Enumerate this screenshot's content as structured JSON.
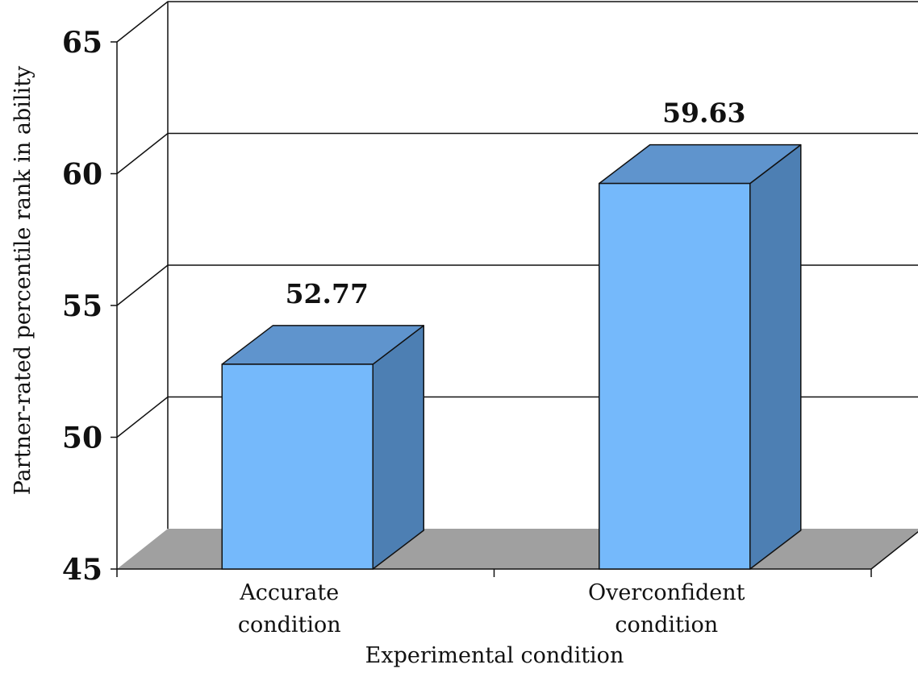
{
  "chart_data": {
    "type": "bar",
    "title": "",
    "xlabel": "Experimental condition",
    "ylabel": "Partner-rated percentile rank in ability",
    "categories": [
      [
        "Accurate",
        "condition"
      ],
      [
        "Overconfident",
        "condition"
      ]
    ],
    "values": [
      52.77,
      59.63
    ],
    "data_labels": [
      "52.77",
      "59.63"
    ],
    "ylim": [
      45,
      65
    ],
    "yticks": [
      45,
      50,
      55,
      60,
      65
    ],
    "ytick_labels": [
      "45",
      "50",
      "55",
      "60",
      "65"
    ],
    "grid": true,
    "style": "3d",
    "colors": {
      "bar_front": "#75b9fb",
      "bar_top": "#5f94cd",
      "bar_side": "#4d7fb3",
      "floor": "#a0a0a0",
      "outline": "#111111"
    }
  }
}
